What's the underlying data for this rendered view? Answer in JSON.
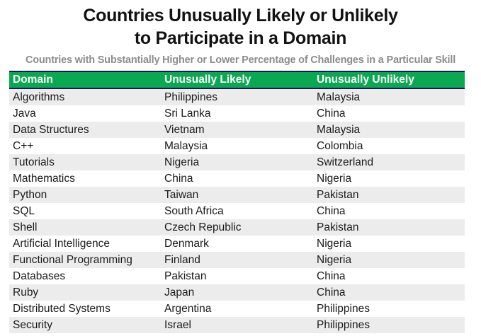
{
  "page": {
    "title_line1": "Countries Unusually Likely or Unlikely",
    "title_line2": "to Participate in a Domain",
    "subtitle": "Countries with Substantially Higher or Lower Percentage of Challenges in a Particular Skill"
  },
  "colors": {
    "header_green": "#0aa850",
    "header_border_navy": "#1b1464",
    "row_alt_gray": "#ececec",
    "subtitle_gray": "#8c8c8c",
    "text_dark": "#1b1b1b",
    "header_text": "#ffffff"
  },
  "chart_data": {
    "type": "table",
    "title": "Countries Unusually Likely or Unlikely to Participate in a Domain",
    "subtitle": "Countries with Substantially Higher or Lower Percentage of Challenges in a Particular Skill",
    "columns": [
      "Domain",
      "Unusually Likely",
      "Unusually Unlikely"
    ],
    "rows": [
      [
        "Algorithms",
        "Philippines",
        "Malaysia"
      ],
      [
        "Java",
        "Sri Lanka",
        "China"
      ],
      [
        "Data Structures",
        "Vietnam",
        "Malaysia"
      ],
      [
        "C++",
        "Malaysia",
        "Colombia"
      ],
      [
        "Tutorials",
        "Nigeria",
        "Switzerland"
      ],
      [
        "Mathematics",
        "China",
        "Nigeria"
      ],
      [
        "Python",
        "Taiwan",
        "Pakistan"
      ],
      [
        "SQL",
        "South Africa",
        "China"
      ],
      [
        "Shell",
        "Czech Republic",
        "Pakistan"
      ],
      [
        "Artificial Intelligence",
        "Denmark",
        "Nigeria"
      ],
      [
        "Functional Programming",
        "Finland",
        "Nigeria"
      ],
      [
        "Databases",
        "Pakistan",
        "China"
      ],
      [
        "Ruby",
        "Japan",
        "China"
      ],
      [
        "Distributed Systems",
        "Argentina",
        "Philippines"
      ],
      [
        "Security",
        "Israel",
        "Philippines"
      ]
    ],
    "layout": {
      "legend": "none",
      "grid": "off",
      "row_striping": "odd-rows-gray",
      "header_style": "green-band-with-navy-borders"
    }
  }
}
